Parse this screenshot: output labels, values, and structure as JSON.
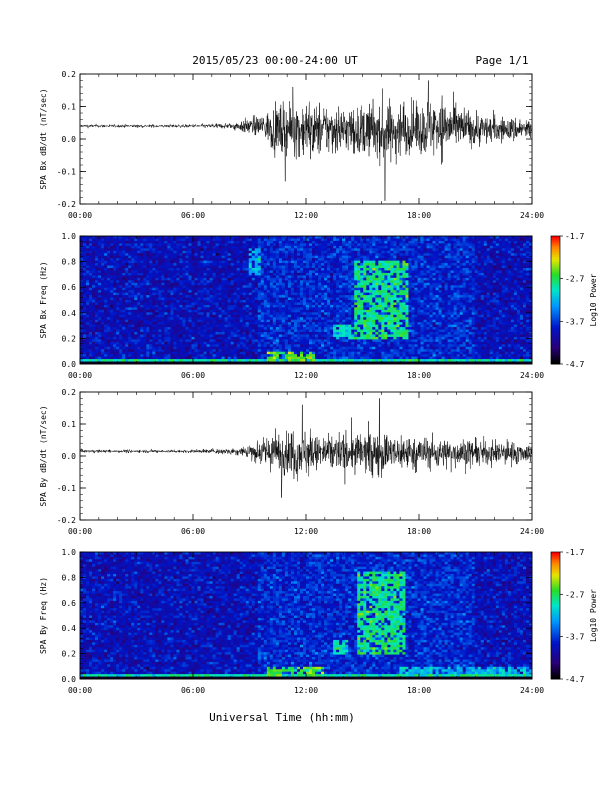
{
  "header": {
    "title": "2015/05/23  00:00-24:00 UT",
    "page": "Page 1/1"
  },
  "x_axis_label": "Universal Time (hh:mm)",
  "chart_data": [
    {
      "type": "line",
      "panel": "bx-timeseries",
      "ylabel": "SPA Bx dB/dt (nT/sec)",
      "ylim": [
        -0.2,
        0.2
      ],
      "yticks": [
        "0.2",
        "0.1",
        "0.0",
        "-0.1",
        "-0.2"
      ],
      "xticks": [
        "00:00",
        "06:00",
        "12:00",
        "18:00",
        "24:00"
      ],
      "xlim_hours": [
        0,
        24
      ],
      "series": [
        {
          "envelope": [
            {
              "t": 0,
              "base": 0.04,
              "amp": 0.006
            },
            {
              "t": 6,
              "base": 0.04,
              "amp": 0.006
            },
            {
              "t": 8,
              "base": 0.04,
              "amp": 0.012
            },
            {
              "t": 9.5,
              "base": 0.04,
              "amp": 0.04
            },
            {
              "t": 10.5,
              "base": 0.03,
              "amp": 0.1
            },
            {
              "t": 12,
              "base": 0.03,
              "amp": 0.11
            },
            {
              "t": 14,
              "base": 0.03,
              "amp": 0.09
            },
            {
              "t": 16,
              "base": 0.02,
              "amp": 0.12
            },
            {
              "t": 17.5,
              "base": 0.03,
              "amp": 0.1
            },
            {
              "t": 19,
              "base": 0.04,
              "amp": 0.12
            },
            {
              "t": 21,
              "base": 0.03,
              "amp": 0.06
            },
            {
              "t": 24,
              "base": 0.03,
              "amp": 0.04
            }
          ]
        }
      ],
      "extremes": [
        {
          "t": 10.9,
          "v": -0.13
        },
        {
          "t": 16.2,
          "v": -0.19
        },
        {
          "t": 18.5,
          "v": 0.18
        },
        {
          "t": 11.3,
          "v": 0.16
        }
      ]
    },
    {
      "type": "heatmap",
      "panel": "bx-spectrogram",
      "ylabel": "SPA Bx Freq (Hz)",
      "ylim": [
        0.0,
        1.0
      ],
      "yticks": [
        "1.0",
        "0.8",
        "0.6",
        "0.4",
        "0.2",
        "0.0"
      ],
      "xticks": [
        "00:00",
        "06:00",
        "12:00",
        "18:00",
        "24:00"
      ],
      "colorbar": {
        "label": "Log10 Power",
        "ticks": [
          "-1.7",
          "-2.7",
          "-3.7",
          "-4.7"
        ],
        "range": [
          -4.7,
          -1.7
        ]
      },
      "features": [
        {
          "t0": 14.5,
          "t1": 17.5,
          "f0": 0.2,
          "f1": 0.8,
          "level": -2.8
        },
        {
          "t0": 13.5,
          "t1": 14.5,
          "f0": 0.2,
          "f1": 0.3,
          "level": -3.0
        },
        {
          "t0": 9.0,
          "t1": 9.6,
          "f0": 0.7,
          "f1": 0.9,
          "level": -3.2
        },
        {
          "t0": 10.0,
          "t1": 12.5,
          "f0": 0.0,
          "f1": 0.1,
          "level": -2.5
        }
      ]
    },
    {
      "type": "line",
      "panel": "by-timeseries",
      "ylabel": "SPA By dB/dt (nT/sec)",
      "ylim": [
        -0.2,
        0.2
      ],
      "yticks": [
        "0.2",
        "0.1",
        "0.0",
        "-0.1",
        "-0.2"
      ],
      "xticks": [
        "00:00",
        "06:00",
        "12:00",
        "18:00",
        "24:00"
      ],
      "xlim_hours": [
        0,
        24
      ],
      "series": [
        {
          "envelope": [
            {
              "t": 0,
              "base": 0.015,
              "amp": 0.006
            },
            {
              "t": 6,
              "base": 0.015,
              "amp": 0.006
            },
            {
              "t": 8.5,
              "base": 0.015,
              "amp": 0.015
            },
            {
              "t": 10,
              "base": 0.01,
              "amp": 0.07
            },
            {
              "t": 11.5,
              "base": 0.01,
              "amp": 0.1
            },
            {
              "t": 13,
              "base": 0.01,
              "amp": 0.07
            },
            {
              "t": 15.5,
              "base": 0.01,
              "amp": 0.09
            },
            {
              "t": 17,
              "base": 0.01,
              "amp": 0.07
            },
            {
              "t": 19,
              "base": 0.01,
              "amp": 0.06
            },
            {
              "t": 22,
              "base": 0.01,
              "amp": 0.05
            },
            {
              "t": 24,
              "base": 0.01,
              "amp": 0.04
            }
          ]
        }
      ],
      "extremes": [
        {
          "t": 10.7,
          "v": -0.13
        },
        {
          "t": 15.9,
          "v": 0.18
        },
        {
          "t": 11.8,
          "v": 0.16
        }
      ]
    },
    {
      "type": "heatmap",
      "panel": "by-spectrogram",
      "ylabel": "SPA By Freq (Hz)",
      "ylim": [
        0.0,
        1.0
      ],
      "yticks": [
        "1.0",
        "0.8",
        "0.6",
        "0.4",
        "0.2",
        "0.0"
      ],
      "xticks": [
        "00:00",
        "06:00",
        "12:00",
        "18:00",
        "24:00"
      ],
      "colorbar": {
        "label": "Log10 Power",
        "ticks": [
          "-1.7",
          "-2.7",
          "-3.7",
          "-4.7"
        ],
        "range": [
          -4.7,
          -1.7
        ]
      },
      "features": [
        {
          "t0": 14.8,
          "t1": 17.3,
          "f0": 0.2,
          "f1": 0.85,
          "level": -2.8
        },
        {
          "t0": 13.5,
          "t1": 14.3,
          "f0": 0.2,
          "f1": 0.3,
          "level": -3.0
        },
        {
          "t0": 10.0,
          "t1": 13.0,
          "f0": 0.0,
          "f1": 0.1,
          "level": -2.6
        },
        {
          "t0": 17.0,
          "t1": 24.0,
          "f0": 0.0,
          "f1": 0.1,
          "level": -3.2
        }
      ]
    }
  ]
}
